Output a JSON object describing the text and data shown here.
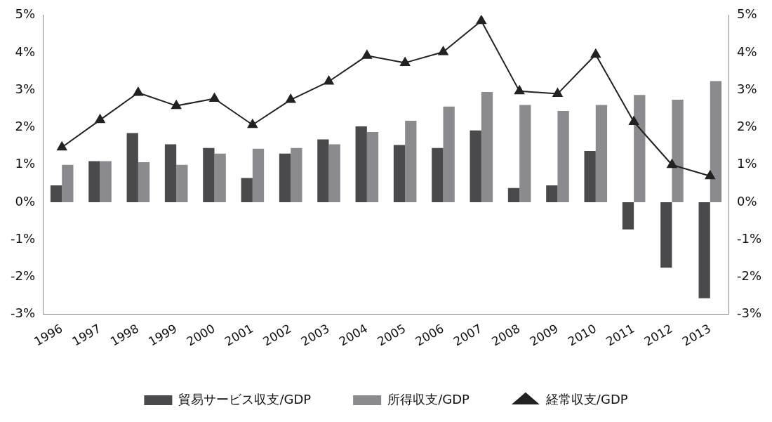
{
  "chart_data": {
    "type": "bar",
    "categories": [
      "1996",
      "1997",
      "1998",
      "1999",
      "2000",
      "2001",
      "2002",
      "2003",
      "2004",
      "2005",
      "2006",
      "2007",
      "2008",
      "2009",
      "2010",
      "2011",
      "2012",
      "2013"
    ],
    "series": [
      {
        "name": "貿易サービス収支/GDP",
        "color": "#4a4a4c",
        "values": [
          0.45,
          1.1,
          1.85,
          1.55,
          1.45,
          0.65,
          1.3,
          1.68,
          2.03,
          1.53,
          1.45,
          1.92,
          0.38,
          0.45,
          1.37,
          -0.73,
          -1.75,
          -2.57
        ]
      },
      {
        "name": "所得収支/GDP",
        "color": "#8a8a8f",
        "values": [
          1.0,
          1.1,
          1.07,
          1.0,
          1.3,
          1.43,
          1.45,
          1.55,
          1.88,
          2.18,
          2.56,
          2.95,
          2.6,
          2.44,
          2.6,
          2.87,
          2.74,
          3.24
        ]
      },
      {
        "name": "経常収支/GDP",
        "type": "line",
        "color": "#222222",
        "marker": "triangle",
        "values": [
          1.47,
          2.2,
          2.93,
          2.58,
          2.77,
          2.07,
          2.74,
          3.23,
          3.92,
          3.73,
          4.02,
          4.85,
          2.97,
          2.9,
          3.95,
          2.15,
          1.0,
          0.7
        ]
      }
    ],
    "ylim": [
      -3,
      5
    ],
    "yticks": [
      {
        "value": -3,
        "label": "-3%"
      },
      {
        "value": -2,
        "label": "-2%"
      },
      {
        "value": -1,
        "label": "-1%"
      },
      {
        "value": 0,
        "label": "0%"
      },
      {
        "value": 1,
        "label": "1%"
      },
      {
        "value": 2,
        "label": "2%"
      },
      {
        "value": 3,
        "label": "3%"
      },
      {
        "value": 4,
        "label": "4%"
      },
      {
        "value": 5,
        "label": "5%"
      }
    ],
    "y2lim": [
      -3,
      5
    ],
    "y2ticks": [
      {
        "value": -3,
        "label": "-3%"
      },
      {
        "value": -2,
        "label": "-2%"
      },
      {
        "value": -1,
        "label": "-1%"
      },
      {
        "value": 0,
        "label": "0%"
      },
      {
        "value": 1,
        "label": "1%"
      },
      {
        "value": 2,
        "label": "2%"
      },
      {
        "value": 3,
        "label": "3%"
      },
      {
        "value": 4,
        "label": "4%"
      },
      {
        "value": 5,
        "label": "5%"
      }
    ],
    "legend": "bottom",
    "grid": false
  }
}
